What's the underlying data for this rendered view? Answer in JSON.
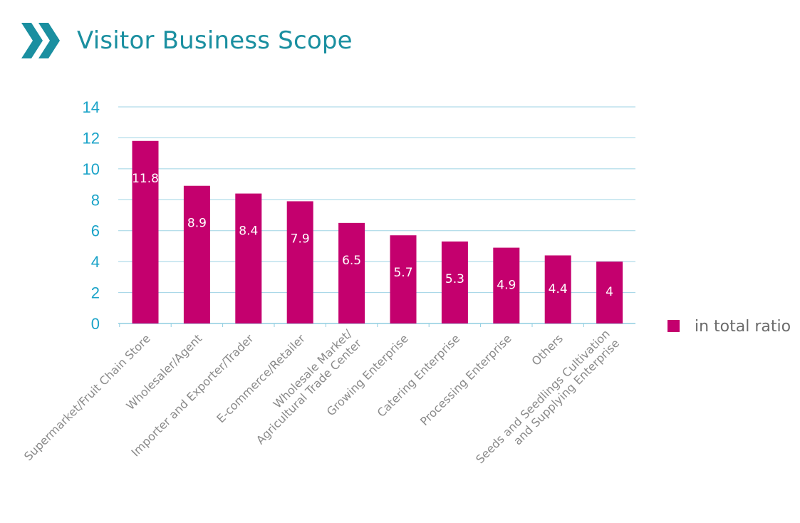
{
  "page": {
    "title": "Visitor Business Scope",
    "title_color": "#1a8fa0",
    "header_icon": "double-chevron-right-icon"
  },
  "colors": {
    "bar": "#c4006e",
    "axis_tick_text": "#1aa3c8",
    "grid": "#9ed3e4",
    "category_text": "#8a8a8a",
    "legend_text": "#6b6b6b",
    "data_label": "#ffffff"
  },
  "chart_data": {
    "type": "bar",
    "title": "Visitor Business Scope",
    "categories": [
      "Supermarket/Fruit Chain Store",
      "Wholesaler/Agent",
      "Importer and Exporter/Trader",
      "E-commerce/Retailer",
      "Wholesale Market/ Agricultural Trade Center",
      "Growing Enterprise",
      "Catering Enterprise",
      "Processing Enterprise",
      "Others",
      "Seeds and Seedlings Cultivation and Supplying Enterprise"
    ],
    "category_lines": [
      [
        "Supermarket/Fruit Chain Store"
      ],
      [
        "Wholesaler/Agent"
      ],
      [
        "Importer and Exporter/Trader"
      ],
      [
        "E-commerce/Retailer"
      ],
      [
        "Wholesale Market/",
        "Agricultural Trade Center"
      ],
      [
        "Growing Enterprise"
      ],
      [
        "Catering Enterprise"
      ],
      [
        "Processing Enterprise"
      ],
      [
        "Others"
      ],
      [
        "Seeds and Seedlings Cultivation",
        "and Supplying Enterprise"
      ]
    ],
    "series": [
      {
        "name": "in total ratio",
        "values": [
          11.8,
          8.9,
          8.4,
          7.9,
          6.5,
          5.7,
          5.3,
          4.9,
          4.4,
          4
        ]
      }
    ],
    "data_labels": [
      "11.8",
      "8.9",
      "8.4",
      "7.9",
      "6.5",
      "5.7",
      "5.3",
      "4.9",
      "4.4",
      "4"
    ],
    "ylim": [
      0,
      14
    ],
    "yticks": [
      0,
      2,
      4,
      6,
      8,
      10,
      12,
      14
    ],
    "grid": true,
    "legend": "right"
  }
}
